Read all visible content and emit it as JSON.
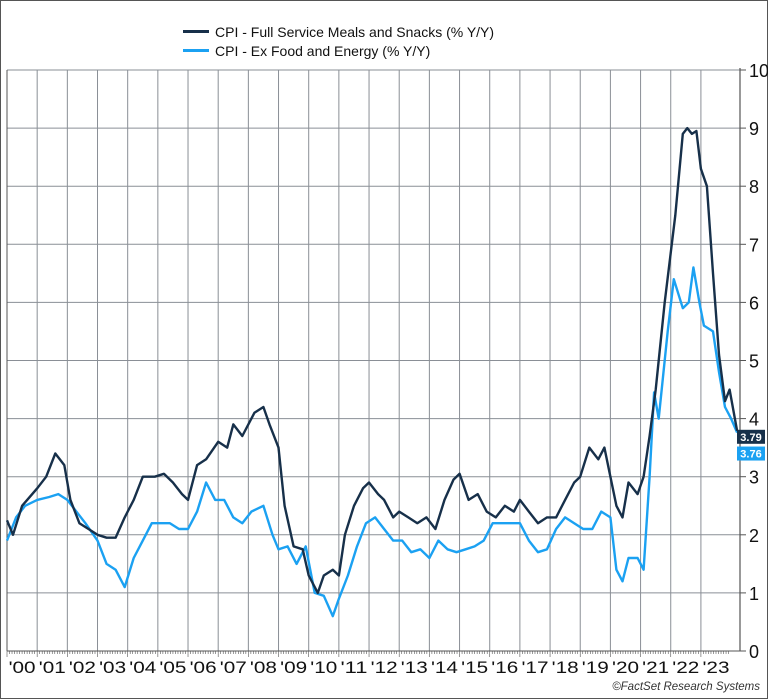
{
  "chart_data": {
    "type": "line",
    "title": "",
    "xlabel": "",
    "ylabel": "",
    "ylim": [
      0,
      10
    ],
    "xlim": [
      2000,
      2024.2
    ],
    "y_axis_side": "right",
    "grid": true,
    "legend_position": "top",
    "y_ticks": [
      "0",
      "1",
      "2",
      "3",
      "4",
      "5",
      "6",
      "7",
      "8",
      "9",
      "10"
    ],
    "x_ticks": [
      "'00",
      "'01",
      "'02",
      "'03",
      "'04",
      "'05",
      "'06",
      "'07",
      "'08",
      "'09",
      "'10",
      "'11",
      "'12",
      "'13",
      "'14",
      "'15",
      "'16",
      "'17",
      "'18",
      "'19",
      "'20",
      "'21",
      "'22",
      "'23"
    ],
    "series": [
      {
        "name": "CPI - Full Service Meals and Snacks (% Y/Y)",
        "color": "#17304a",
        "last_label": "3.79",
        "points": [
          [
            2000.0,
            2.25
          ],
          [
            2000.2,
            2.0
          ],
          [
            2000.5,
            2.5
          ],
          [
            2001.0,
            2.8
          ],
          [
            2001.3,
            3.0
          ],
          [
            2001.6,
            3.4
          ],
          [
            2001.9,
            3.2
          ],
          [
            2002.1,
            2.6
          ],
          [
            2002.4,
            2.2
          ],
          [
            2002.7,
            2.1
          ],
          [
            2003.0,
            2.0
          ],
          [
            2003.3,
            1.95
          ],
          [
            2003.6,
            1.95
          ],
          [
            2003.9,
            2.3
          ],
          [
            2004.2,
            2.6
          ],
          [
            2004.5,
            3.0
          ],
          [
            2004.9,
            3.0
          ],
          [
            2005.2,
            3.05
          ],
          [
            2005.5,
            2.9
          ],
          [
            2005.8,
            2.7
          ],
          [
            2006.0,
            2.6
          ],
          [
            2006.3,
            3.2
          ],
          [
            2006.6,
            3.3
          ],
          [
            2007.0,
            3.6
          ],
          [
            2007.3,
            3.5
          ],
          [
            2007.5,
            3.9
          ],
          [
            2007.8,
            3.7
          ],
          [
            2008.2,
            4.1
          ],
          [
            2008.5,
            4.2
          ],
          [
            2008.7,
            3.9
          ],
          [
            2009.0,
            3.5
          ],
          [
            2009.2,
            2.5
          ],
          [
            2009.5,
            1.8
          ],
          [
            2009.8,
            1.75
          ],
          [
            2010.0,
            1.3
          ],
          [
            2010.3,
            1.0
          ],
          [
            2010.5,
            1.3
          ],
          [
            2010.8,
            1.4
          ],
          [
            2011.0,
            1.3
          ],
          [
            2011.2,
            2.0
          ],
          [
            2011.5,
            2.5
          ],
          [
            2011.8,
            2.8
          ],
          [
            2012.0,
            2.9
          ],
          [
            2012.3,
            2.7
          ],
          [
            2012.5,
            2.6
          ],
          [
            2012.8,
            2.3
          ],
          [
            2013.0,
            2.4
          ],
          [
            2013.3,
            2.3
          ],
          [
            2013.6,
            2.2
          ],
          [
            2013.9,
            2.3
          ],
          [
            2014.2,
            2.1
          ],
          [
            2014.5,
            2.6
          ],
          [
            2014.8,
            2.95
          ],
          [
            2015.0,
            3.05
          ],
          [
            2015.3,
            2.6
          ],
          [
            2015.6,
            2.7
          ],
          [
            2015.9,
            2.4
          ],
          [
            2016.2,
            2.3
          ],
          [
            2016.5,
            2.5
          ],
          [
            2016.8,
            2.4
          ],
          [
            2017.0,
            2.6
          ],
          [
            2017.3,
            2.4
          ],
          [
            2017.6,
            2.2
          ],
          [
            2017.9,
            2.3
          ],
          [
            2018.2,
            2.3
          ],
          [
            2018.5,
            2.6
          ],
          [
            2018.8,
            2.9
          ],
          [
            2019.0,
            3.0
          ],
          [
            2019.3,
            3.5
          ],
          [
            2019.6,
            3.3
          ],
          [
            2019.8,
            3.5
          ],
          [
            2020.0,
            3.0
          ],
          [
            2020.2,
            2.5
          ],
          [
            2020.4,
            2.3
          ],
          [
            2020.6,
            2.9
          ],
          [
            2020.9,
            2.7
          ],
          [
            2021.1,
            3.0
          ],
          [
            2021.3,
            3.7
          ],
          [
            2021.5,
            4.5
          ],
          [
            2021.8,
            6.0
          ],
          [
            2022.15,
            7.5
          ],
          [
            2022.4,
            8.9
          ],
          [
            2022.55,
            9.0
          ],
          [
            2022.7,
            8.9
          ],
          [
            2022.85,
            8.95
          ],
          [
            2023.0,
            8.3
          ],
          [
            2023.2,
            8.0
          ],
          [
            2023.4,
            6.5
          ],
          [
            2023.6,
            5.1
          ],
          [
            2023.8,
            4.3
          ],
          [
            2023.95,
            4.5
          ],
          [
            2024.2,
            3.79
          ]
        ]
      },
      {
        "name": "CPI - Ex Food and Energy (% Y/Y)",
        "color": "#1ba1f2",
        "last_label": "3.76",
        "points": [
          [
            2000.0,
            1.9
          ],
          [
            2000.3,
            2.3
          ],
          [
            2000.6,
            2.5
          ],
          [
            2001.0,
            2.6
          ],
          [
            2001.4,
            2.65
          ],
          [
            2001.7,
            2.7
          ],
          [
            2002.0,
            2.6
          ],
          [
            2002.3,
            2.4
          ],
          [
            2002.6,
            2.2
          ],
          [
            2003.0,
            1.9
          ],
          [
            2003.3,
            1.5
          ],
          [
            2003.6,
            1.4
          ],
          [
            2003.9,
            1.1
          ],
          [
            2004.2,
            1.6
          ],
          [
            2004.5,
            1.9
          ],
          [
            2004.8,
            2.2
          ],
          [
            2005.1,
            2.2
          ],
          [
            2005.4,
            2.2
          ],
          [
            2005.7,
            2.1
          ],
          [
            2006.0,
            2.1
          ],
          [
            2006.3,
            2.4
          ],
          [
            2006.6,
            2.9
          ],
          [
            2006.9,
            2.6
          ],
          [
            2007.2,
            2.6
          ],
          [
            2007.5,
            2.3
          ],
          [
            2007.8,
            2.2
          ],
          [
            2008.1,
            2.4
          ],
          [
            2008.5,
            2.5
          ],
          [
            2008.8,
            2.0
          ],
          [
            2009.0,
            1.75
          ],
          [
            2009.3,
            1.8
          ],
          [
            2009.6,
            1.5
          ],
          [
            2009.9,
            1.8
          ],
          [
            2010.2,
            1.0
          ],
          [
            2010.5,
            0.95
          ],
          [
            2010.8,
            0.6
          ],
          [
            2011.0,
            0.9
          ],
          [
            2011.3,
            1.3
          ],
          [
            2011.6,
            1.8
          ],
          [
            2011.9,
            2.2
          ],
          [
            2012.2,
            2.3
          ],
          [
            2012.5,
            2.1
          ],
          [
            2012.8,
            1.9
          ],
          [
            2013.1,
            1.9
          ],
          [
            2013.4,
            1.7
          ],
          [
            2013.7,
            1.75
          ],
          [
            2014.0,
            1.6
          ],
          [
            2014.3,
            1.9
          ],
          [
            2014.6,
            1.75
          ],
          [
            2014.9,
            1.7
          ],
          [
            2015.2,
            1.75
          ],
          [
            2015.5,
            1.8
          ],
          [
            2015.8,
            1.9
          ],
          [
            2016.1,
            2.2
          ],
          [
            2016.4,
            2.2
          ],
          [
            2016.7,
            2.2
          ],
          [
            2017.0,
            2.2
          ],
          [
            2017.3,
            1.9
          ],
          [
            2017.6,
            1.7
          ],
          [
            2017.9,
            1.75
          ],
          [
            2018.2,
            2.1
          ],
          [
            2018.5,
            2.3
          ],
          [
            2018.8,
            2.2
          ],
          [
            2019.1,
            2.1
          ],
          [
            2019.4,
            2.1
          ],
          [
            2019.7,
            2.4
          ],
          [
            2020.0,
            2.3
          ],
          [
            2020.2,
            1.4
          ],
          [
            2020.4,
            1.2
          ],
          [
            2020.6,
            1.6
          ],
          [
            2020.9,
            1.6
          ],
          [
            2021.1,
            1.4
          ],
          [
            2021.3,
            3.0
          ],
          [
            2021.45,
            4.45
          ],
          [
            2021.6,
            4.0
          ],
          [
            2021.9,
            5.5
          ],
          [
            2022.1,
            6.4
          ],
          [
            2022.4,
            5.9
          ],
          [
            2022.6,
            6.0
          ],
          [
            2022.75,
            6.6
          ],
          [
            2022.95,
            6.0
          ],
          [
            2023.1,
            5.6
          ],
          [
            2023.4,
            5.5
          ],
          [
            2023.6,
            4.8
          ],
          [
            2023.8,
            4.2
          ],
          [
            2024.0,
            4.0
          ],
          [
            2024.2,
            3.76
          ]
        ]
      }
    ]
  },
  "credit": "©FactSet Research Systems"
}
